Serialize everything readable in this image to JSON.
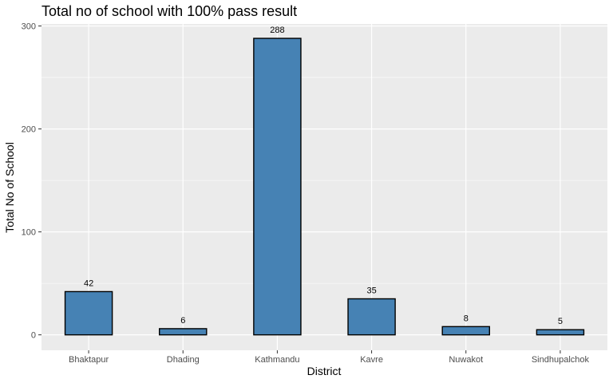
{
  "chart_data": {
    "type": "bar",
    "title": "Total no of school with 100% pass result",
    "xlabel": "District",
    "ylabel": "Total No of School",
    "categories": [
      "Bhaktapur",
      "Dhading",
      "Kathmandu",
      "Kavre",
      "Nuwakot",
      "Sindhupalchok"
    ],
    "values": [
      42,
      6,
      288,
      35,
      8,
      5
    ],
    "data_labels": [
      "42",
      "6",
      "288",
      "35",
      "8",
      "5"
    ],
    "ylim": [
      -15,
      302
    ],
    "yticks": [
      0,
      100,
      200,
      300
    ],
    "ytick_labels": [
      "0",
      "100",
      "200",
      "300"
    ],
    "grid": true,
    "legend": "none",
    "colors": {
      "bar_fill": "#4682b4",
      "bar_stroke": "#000000",
      "panel": "#ebebeb",
      "grid": "#ffffff"
    }
  }
}
